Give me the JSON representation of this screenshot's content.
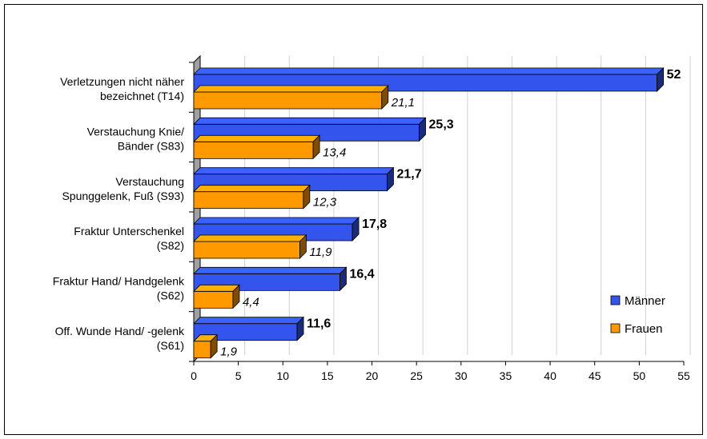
{
  "chart_data": {
    "type": "bar",
    "orientation": "horizontal",
    "three_d": true,
    "categories": [
      [
        "Verletzungen nicht näher",
        "bezeichnet (T14)"
      ],
      [
        "Verstauchung Knie/",
        "Bänder (S83)"
      ],
      [
        "Verstauchung",
        "Spunggelenk, Fuß (S93)"
      ],
      [
        "Fraktur Unterschenkel",
        "(S82)"
      ],
      [
        "Fraktur Hand/ Handgelenk",
        "(S62)"
      ],
      [
        "Off. Wunde Hand/ -gelenk",
        "(S61)"
      ]
    ],
    "series": [
      {
        "name": "Männer",
        "values": [
          52,
          25.3,
          21.7,
          17.8,
          16.4,
          11.6
        ],
        "labels": [
          "52",
          "25,3",
          "21,7",
          "17,8",
          "16,4",
          "11,6"
        ],
        "color": "#3355ee"
      },
      {
        "name": "Frauen",
        "values": [
          21.1,
          13.4,
          12.3,
          11.9,
          4.4,
          1.9
        ],
        "labels": [
          "21,1",
          "13,4",
          "12,3",
          "11,9",
          "4,4",
          "1,9"
        ],
        "color": "#ff9900"
      }
    ],
    "xlim": [
      0,
      55
    ],
    "xticks": [
      0,
      5,
      10,
      15,
      20,
      25,
      30,
      35,
      40,
      45,
      50,
      55
    ],
    "grid": true,
    "legend_position": "right"
  }
}
